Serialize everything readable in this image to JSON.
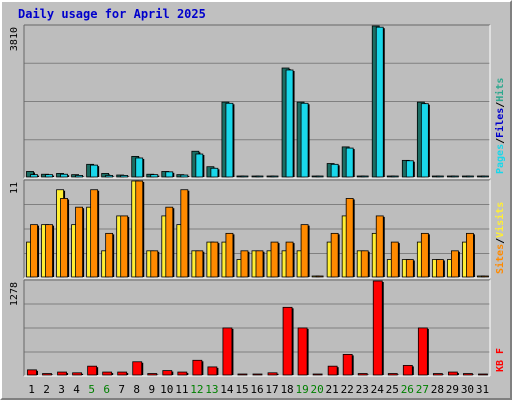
{
  "title": "Daily usage for April 2025",
  "colors": {
    "background": "#c0c0c0",
    "panel": "#bdbdbd",
    "pages": "#1a6e64",
    "files": "#19d7ea",
    "hits": "#2ea88e",
    "visits": "#ffee33",
    "sites": "#ff8a00",
    "kbytes": "#ff0000",
    "title": "#0000cc",
    "weekend_label": "#008000"
  },
  "chart_data": [
    {
      "type": "bar",
      "panel": "top",
      "ymax_label": "3810",
      "ylim": [
        0,
        3810
      ],
      "legend": [
        {
          "text": "Pages",
          "color": "#19d7ea"
        },
        {
          "text": "/",
          "color": "#000000"
        },
        {
          "text": "Files",
          "color": "#0000cc"
        },
        {
          "text": "/",
          "color": "#000000"
        },
        {
          "text": "Hits",
          "color": "#2ea88e"
        }
      ],
      "categories": [
        "1",
        "2",
        "3",
        "4",
        "5",
        "6",
        "7",
        "8",
        "9",
        "10",
        "11",
        "12",
        "13",
        "14",
        "15",
        "16",
        "17",
        "18",
        "19",
        "20",
        "21",
        "22",
        "23",
        "24",
        "25",
        "26",
        "27",
        "28",
        "29",
        "30",
        "31"
      ],
      "series": [
        {
          "name": "Hits",
          "values": [
            140,
            70,
            90,
            60,
            320,
            90,
            50,
            520,
            70,
            140,
            60,
            650,
            260,
            1890,
            20,
            20,
            20,
            2750,
            1890,
            0,
            340,
            760,
            20,
            3810,
            20,
            420,
            1890,
            20,
            20,
            20,
            0
          ]
        },
        {
          "name": "Files",
          "values": [
            60,
            60,
            70,
            40,
            300,
            40,
            40,
            480,
            60,
            130,
            50,
            580,
            220,
            1860,
            20,
            20,
            20,
            2700,
            1860,
            0,
            320,
            730,
            20,
            3780,
            20,
            410,
            1850,
            20,
            20,
            20,
            0
          ]
        }
      ]
    },
    {
      "type": "bar",
      "panel": "middle",
      "ymax_label": "11",
      "ylim": [
        0,
        11
      ],
      "legend": [
        {
          "text": "Sites",
          "color": "#ff8a00"
        },
        {
          "text": "/",
          "color": "#000000"
        },
        {
          "text": "Visits",
          "color": "#ffee33"
        }
      ],
      "categories": [
        "1",
        "2",
        "3",
        "4",
        "5",
        "6",
        "7",
        "8",
        "9",
        "10",
        "11",
        "12",
        "13",
        "14",
        "15",
        "16",
        "17",
        "18",
        "19",
        "20",
        "21",
        "22",
        "23",
        "24",
        "25",
        "26",
        "27",
        "28",
        "29",
        "30",
        "31"
      ],
      "series": [
        {
          "name": "Visits",
          "values": [
            4,
            6,
            10,
            6,
            8,
            3,
            7,
            11,
            3,
            7,
            6,
            3,
            4,
            4,
            2,
            3,
            3,
            3,
            3,
            0,
            4,
            7,
            3,
            5,
            2,
            2,
            4,
            2,
            2,
            4,
            0
          ]
        },
        {
          "name": "Sites",
          "values": [
            6,
            6,
            9,
            8,
            10,
            5,
            7,
            11,
            3,
            8,
            10,
            3,
            4,
            5,
            3,
            3,
            4,
            4,
            6,
            0,
            5,
            9,
            3,
            7,
            4,
            2,
            5,
            2,
            3,
            5,
            0
          ]
        }
      ]
    },
    {
      "type": "bar",
      "panel": "bottom",
      "ymax_label": "1278",
      "ylim": [
        0,
        1278
      ],
      "legend": [
        {
          "text": "KB F",
          "color": "#ff0000"
        }
      ],
      "categories": [
        "1",
        "2",
        "3",
        "4",
        "5",
        "6",
        "7",
        "8",
        "9",
        "10",
        "11",
        "12",
        "13",
        "14",
        "15",
        "16",
        "17",
        "18",
        "19",
        "20",
        "21",
        "22",
        "23",
        "24",
        "25",
        "26",
        "27",
        "28",
        "29",
        "30",
        "31"
      ],
      "series": [
        {
          "name": "KB F",
          "values": [
            70,
            20,
            40,
            30,
            120,
            40,
            40,
            180,
            20,
            60,
            40,
            200,
            110,
            640,
            10,
            10,
            30,
            920,
            640,
            0,
            120,
            280,
            20,
            1278,
            20,
            130,
            640,
            20,
            40,
            20,
            0
          ]
        }
      ]
    }
  ],
  "x_labels": [
    {
      "text": "1",
      "weekend": false
    },
    {
      "text": "2",
      "weekend": false
    },
    {
      "text": "3",
      "weekend": false
    },
    {
      "text": "4",
      "weekend": false
    },
    {
      "text": "5",
      "weekend": true
    },
    {
      "text": "6",
      "weekend": true
    },
    {
      "text": "7",
      "weekend": false
    },
    {
      "text": "8",
      "weekend": false
    },
    {
      "text": "9",
      "weekend": false
    },
    {
      "text": "10",
      "weekend": false
    },
    {
      "text": "11",
      "weekend": false
    },
    {
      "text": "12",
      "weekend": true
    },
    {
      "text": "13",
      "weekend": true
    },
    {
      "text": "14",
      "weekend": false
    },
    {
      "text": "15",
      "weekend": false
    },
    {
      "text": "16",
      "weekend": false
    },
    {
      "text": "17",
      "weekend": false
    },
    {
      "text": "18",
      "weekend": false
    },
    {
      "text": "19",
      "weekend": true
    },
    {
      "text": "20",
      "weekend": true
    },
    {
      "text": "21",
      "weekend": false
    },
    {
      "text": "22",
      "weekend": false
    },
    {
      "text": "23",
      "weekend": false
    },
    {
      "text": "24",
      "weekend": false
    },
    {
      "text": "25",
      "weekend": false
    },
    {
      "text": "26",
      "weekend": true
    },
    {
      "text": "27",
      "weekend": true
    },
    {
      "text": "28",
      "weekend": false
    },
    {
      "text": "29",
      "weekend": false
    },
    {
      "text": "30",
      "weekend": false
    },
    {
      "text": "31",
      "weekend": false
    }
  ]
}
